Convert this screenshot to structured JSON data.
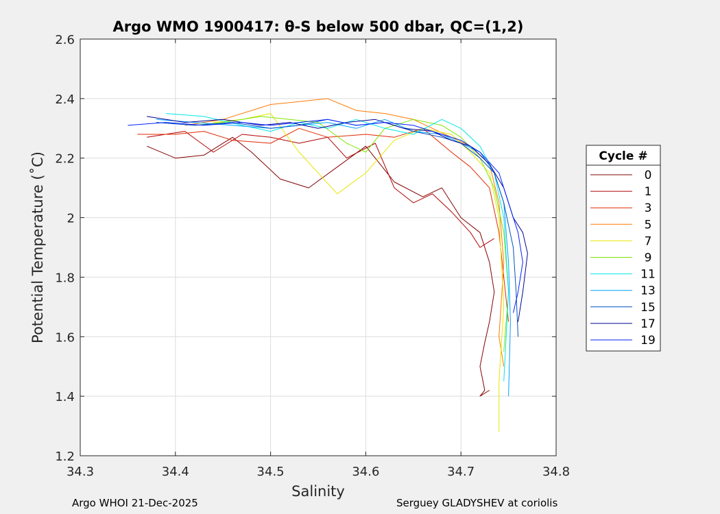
{
  "chart_data": {
    "type": "line",
    "title": "Argo WMO 1900417: θ-S below 500 dbar,  QC=(1,2)",
    "xlabel": "Salinity",
    "ylabel": "Potential Temperature (˚C)",
    "xlim": [
      34.3,
      34.8
    ],
    "ylim": [
      1.2,
      2.6
    ],
    "xticks": [
      34.3,
      34.4,
      34.5,
      34.6,
      34.7,
      34.8
    ],
    "xtick_labels": [
      "34.3",
      "34.4",
      "34.5",
      "34.6",
      "34.7",
      "34.8"
    ],
    "yticks": [
      1.2,
      1.4,
      1.6,
      1.8,
      2.0,
      2.2,
      2.4,
      2.6
    ],
    "ytick_labels": [
      "1.2",
      "1.4",
      "1.6",
      "1.8",
      "2",
      "2.2",
      "2.4",
      "2.6"
    ],
    "grid": true,
    "legend_title": "Cycle #",
    "legend_position": "outside-right",
    "series": [
      {
        "name": "0",
        "color": "#800000",
        "x": [
          34.37,
          34.4,
          34.43,
          34.46,
          34.48,
          34.51,
          34.54,
          34.57,
          34.6,
          34.63,
          34.66,
          34.68,
          34.7,
          34.72,
          34.73,
          34.735,
          34.73,
          34.725,
          34.72,
          34.725,
          34.72,
          34.73
        ],
        "y": [
          2.24,
          2.2,
          2.21,
          2.27,
          2.22,
          2.13,
          2.1,
          2.17,
          2.24,
          2.12,
          2.07,
          2.1,
          2.0,
          1.95,
          1.85,
          1.75,
          1.65,
          1.58,
          1.5,
          1.42,
          1.4,
          1.42
        ]
      },
      {
        "name": "1",
        "color": "#b00000",
        "x": [
          34.37,
          34.41,
          34.44,
          34.47,
          34.5,
          34.53,
          34.56,
          34.58,
          34.61,
          34.63,
          34.65,
          34.67,
          34.69,
          34.71,
          34.72,
          34.73,
          34.735
        ],
        "y": [
          2.27,
          2.29,
          2.22,
          2.28,
          2.27,
          2.25,
          2.27,
          2.2,
          2.25,
          2.1,
          2.05,
          2.08,
          2.02,
          1.95,
          1.9,
          1.92,
          1.93
        ]
      },
      {
        "name": "3",
        "color": "#e02800",
        "x": [
          34.36,
          34.4,
          34.43,
          34.46,
          34.5,
          34.53,
          34.56,
          34.6,
          34.63,
          34.66,
          34.69,
          34.71,
          34.73,
          34.74,
          34.745,
          34.75
        ],
        "y": [
          2.28,
          2.28,
          2.29,
          2.26,
          2.25,
          2.3,
          2.27,
          2.28,
          2.27,
          2.3,
          2.22,
          2.17,
          2.1,
          1.95,
          1.8,
          1.65
        ]
      },
      {
        "name": "5",
        "color": "#ff7a00",
        "x": [
          34.41,
          34.45,
          34.5,
          34.53,
          34.56,
          34.59,
          34.62,
          34.65,
          34.67,
          34.69,
          34.71,
          34.73,
          34.74,
          34.745,
          34.74,
          34.745
        ],
        "y": [
          2.31,
          2.33,
          2.38,
          2.39,
          2.4,
          2.36,
          2.35,
          2.33,
          2.3,
          2.27,
          2.24,
          2.18,
          2.05,
          1.85,
          1.6,
          1.5
        ]
      },
      {
        "name": "7",
        "color": "#e6e600",
        "x": [
          34.44,
          34.47,
          34.5,
          34.53,
          34.55,
          34.57,
          34.6,
          34.63,
          34.66,
          34.69,
          34.71,
          34.73,
          34.74,
          34.745,
          34.74,
          34.74
        ],
        "y": [
          2.32,
          2.33,
          2.35,
          2.22,
          2.15,
          2.08,
          2.15,
          2.26,
          2.3,
          2.28,
          2.22,
          2.15,
          2.0,
          1.7,
          1.45,
          1.28
        ]
      },
      {
        "name": "9",
        "color": "#7ee600",
        "x": [
          34.42,
          34.45,
          34.49,
          34.52,
          34.55,
          34.58,
          34.6,
          34.62,
          34.65,
          34.68,
          34.7,
          34.72,
          34.735,
          34.745,
          34.75,
          34.745
        ],
        "y": [
          2.31,
          2.32,
          2.34,
          2.33,
          2.32,
          2.25,
          2.22,
          2.3,
          2.33,
          2.31,
          2.27,
          2.2,
          2.1,
          1.95,
          1.75,
          1.55
        ]
      },
      {
        "name": "11",
        "color": "#00e6e6",
        "x": [
          34.39,
          34.43,
          34.47,
          34.5,
          34.53,
          34.56,
          34.59,
          34.62,
          34.65,
          34.68,
          34.7,
          34.72,
          34.735,
          34.745,
          34.75,
          34.745
        ],
        "y": [
          2.35,
          2.34,
          2.31,
          2.29,
          2.32,
          2.3,
          2.33,
          2.3,
          2.28,
          2.33,
          2.3,
          2.24,
          2.15,
          2.0,
          1.75,
          1.45
        ]
      },
      {
        "name": "13",
        "color": "#00a0ff",
        "x": [
          34.38,
          34.42,
          34.46,
          34.5,
          34.53,
          34.56,
          34.59,
          34.62,
          34.65,
          34.68,
          34.7,
          34.72,
          34.735,
          34.745,
          34.75,
          34.752,
          34.75
        ],
        "y": [
          2.33,
          2.32,
          2.31,
          2.3,
          2.31,
          2.32,
          2.3,
          2.33,
          2.29,
          2.28,
          2.25,
          2.22,
          2.15,
          2.05,
          1.85,
          1.65,
          1.4
        ]
      },
      {
        "name": "15",
        "color": "#0050c0",
        "x": [
          34.38,
          34.42,
          34.46,
          34.5,
          34.53,
          34.56,
          34.59,
          34.62,
          34.65,
          34.68,
          34.7,
          34.72,
          34.735,
          34.745,
          34.755,
          34.758,
          34.76
        ],
        "y": [
          2.32,
          2.31,
          2.32,
          2.3,
          2.31,
          2.33,
          2.31,
          2.32,
          2.29,
          2.27,
          2.25,
          2.2,
          2.15,
          2.05,
          1.9,
          1.75,
          1.6
        ]
      },
      {
        "name": "17",
        "color": "#000090",
        "x": [
          34.37,
          34.41,
          34.45,
          34.49,
          34.52,
          34.55,
          34.58,
          34.61,
          34.64,
          34.67,
          34.69,
          34.71,
          34.73,
          34.745,
          34.755,
          34.765,
          34.77,
          34.765,
          34.76
        ],
        "y": [
          2.34,
          2.32,
          2.33,
          2.31,
          2.32,
          2.3,
          2.32,
          2.33,
          2.3,
          2.29,
          2.26,
          2.24,
          2.18,
          2.1,
          2.0,
          1.95,
          1.88,
          1.75,
          1.65
        ]
      },
      {
        "name": "19",
        "color": "#0020ff",
        "x": [
          34.35,
          34.39,
          34.43,
          34.47,
          34.5,
          34.53,
          34.56,
          34.59,
          34.62,
          34.65,
          34.68,
          34.7,
          34.72,
          34.74,
          34.75,
          34.76,
          34.765,
          34.76,
          34.755
        ],
        "y": [
          2.31,
          2.32,
          2.31,
          2.32,
          2.31,
          2.32,
          2.33,
          2.31,
          2.32,
          2.31,
          2.28,
          2.26,
          2.22,
          2.15,
          2.05,
          1.95,
          1.85,
          1.75,
          1.68
        ]
      }
    ]
  },
  "footer": {
    "left": "Argo WHOI 21-Dec-2025",
    "right": "Serguey GLADYSHEV at coriolis"
  }
}
